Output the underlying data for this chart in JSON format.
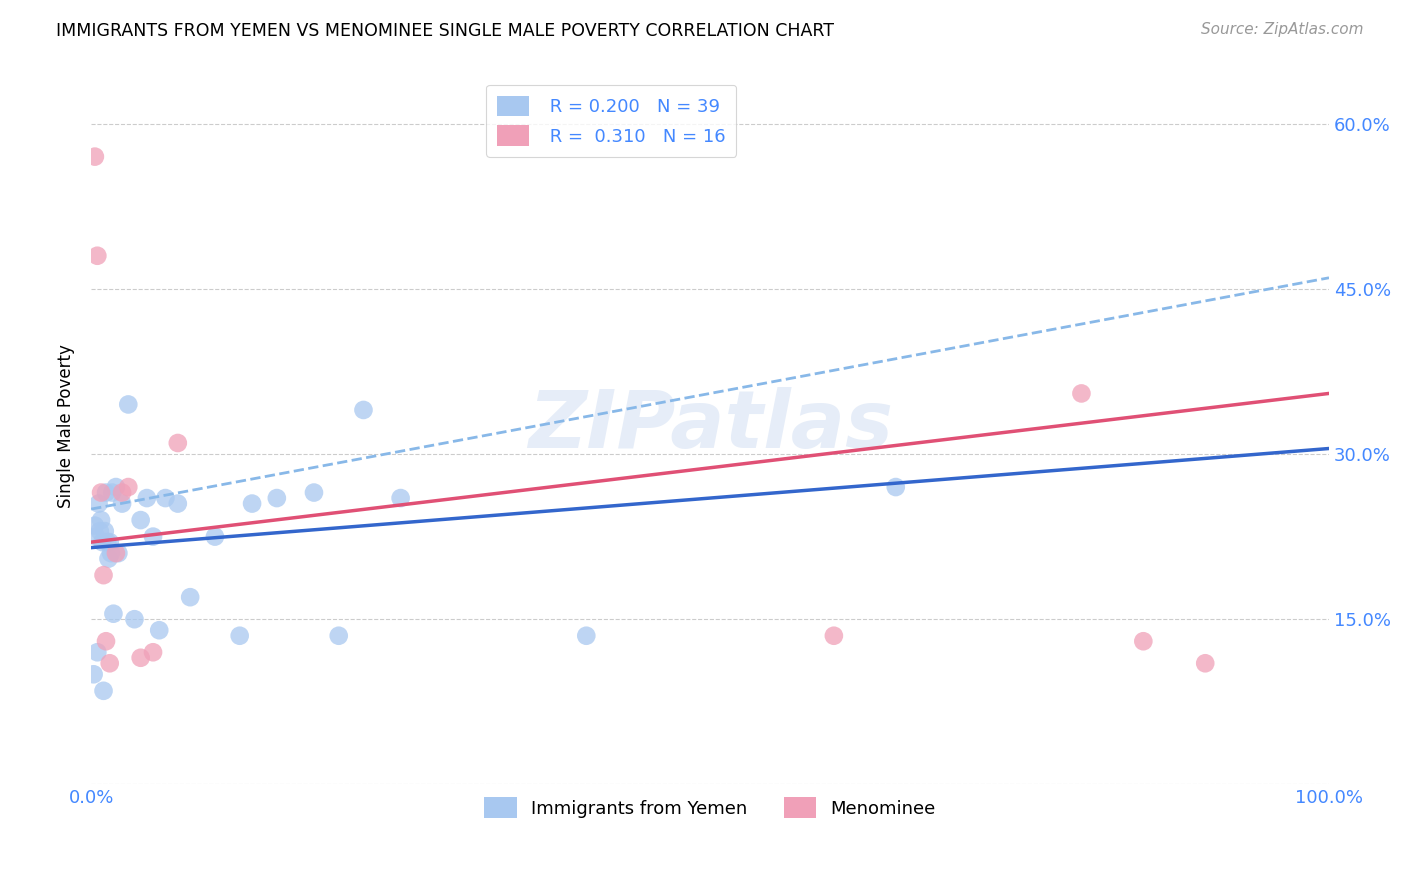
{
  "title": "IMMIGRANTS FROM YEMEN VS MENOMINEE SINGLE MALE POVERTY CORRELATION CHART",
  "source": "Source: ZipAtlas.com",
  "ylabel": "Single Male Poverty",
  "watermark": "ZIPatlas",
  "legend_label1": "Immigrants from Yemen",
  "legend_label2": "Menominee",
  "R1": 0.2,
  "N1": 39,
  "R2": 0.31,
  "N2": 16,
  "blue_color": "#a8c8f0",
  "blue_line_color": "#3366cc",
  "pink_color": "#f0a0b8",
  "pink_line_color": "#e05075",
  "dashed_line_color": "#88b8e8",
  "xlim": [
    0,
    100
  ],
  "ylim": [
    0,
    65
  ],
  "ytick_vals": [
    0,
    15,
    30,
    45,
    60
  ],
  "ytick_labels": [
    "",
    "15.0%",
    "30.0%",
    "45.0%",
    "60.0%"
  ],
  "blue_x": [
    0.2,
    0.3,
    0.4,
    0.5,
    0.6,
    0.7,
    0.8,
    0.9,
    1.0,
    1.1,
    1.2,
    1.3,
    1.4,
    1.5,
    1.6,
    1.7,
    1.8,
    2.0,
    2.2,
    2.5,
    3.0,
    3.5,
    4.0,
    4.5,
    5.0,
    5.5,
    6.0,
    7.0,
    8.0,
    10.0,
    12.0,
    13.0,
    15.0,
    18.0,
    20.0,
    22.0,
    25.0,
    40.0,
    65.0
  ],
  "blue_y": [
    10.0,
    23.5,
    22.5,
    12.0,
    25.5,
    23.0,
    24.0,
    22.0,
    8.5,
    23.0,
    26.5,
    22.0,
    20.5,
    22.0,
    21.0,
    26.5,
    15.5,
    27.0,
    21.0,
    25.5,
    34.5,
    15.0,
    24.0,
    26.0,
    22.5,
    14.0,
    26.0,
    25.5,
    17.0,
    22.5,
    13.5,
    25.5,
    26.0,
    26.5,
    13.5,
    34.0,
    26.0,
    13.5,
    27.0
  ],
  "pink_x": [
    0.3,
    0.5,
    0.8,
    1.0,
    1.2,
    1.5,
    2.0,
    2.5,
    3.0,
    4.0,
    5.0,
    7.0,
    60.0,
    80.0,
    85.0,
    90.0
  ],
  "pink_y": [
    57.0,
    48.0,
    26.5,
    19.0,
    13.0,
    11.0,
    21.0,
    26.5,
    27.0,
    11.5,
    12.0,
    31.0,
    13.5,
    35.5,
    13.0,
    11.0
  ],
  "blue_line_x0": 0,
  "blue_line_y0": 21.5,
  "blue_line_x1": 100,
  "blue_line_y1": 30.5,
  "pink_line_x0": 0,
  "pink_line_y0": 22.0,
  "pink_line_x1": 100,
  "pink_line_y1": 35.5,
  "dashed_line_x0": 0,
  "dashed_line_y0": 25.0,
  "dashed_line_x1": 100,
  "dashed_line_y1": 46.0
}
